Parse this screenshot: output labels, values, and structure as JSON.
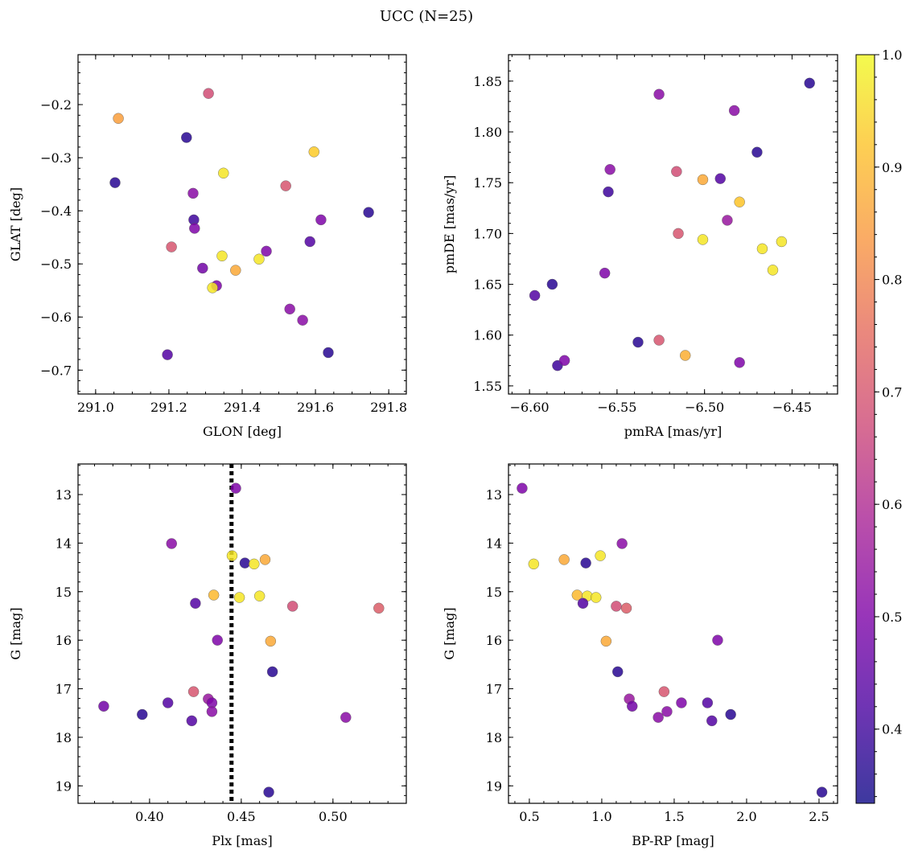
{
  "title": "UCC (N=25)",
  "colorbar": {
    "vmin": 0.334,
    "vmax": 1.0,
    "ticks": [
      0.4,
      0.5,
      0.6,
      0.7,
      0.8,
      0.9,
      1.0
    ],
    "tick_labels": [
      "0.4",
      "0.5",
      "0.6",
      "0.7",
      "0.8",
      "0.9",
      "1.0"
    ],
    "cmap": "plasma"
  },
  "chart_data": [
    {
      "type": "scatter",
      "xlabel": "GLON [deg]",
      "ylabel": "GLAT [deg]",
      "xlim": [
        290.952,
        291.848
      ],
      "ylim": [
        -0.745,
        -0.106
      ],
      "y_inverted": false,
      "xticks": [
        291.0,
        291.2,
        291.4,
        291.6,
        291.8
      ],
      "xtick_labels": [
        "291.0",
        "291.2",
        "291.4",
        "291.6",
        "291.8"
      ],
      "xminor": 0.05,
      "yticks": [
        -0.7,
        -0.6,
        -0.5,
        -0.4,
        -0.3,
        -0.2
      ],
      "ytick_labels": [
        "−0.7",
        "−0.6",
        "−0.5",
        "−0.4",
        "−0.3",
        "−0.2"
      ],
      "yminor": 0.02,
      "points": [
        [
          291.062,
          -0.226,
          0.85
        ],
        [
          291.308,
          -0.179,
          0.68
        ],
        [
          291.248,
          -0.262,
          0.37
        ],
        [
          291.053,
          -0.347,
          0.37
        ],
        [
          291.349,
          -0.329,
          0.97
        ],
        [
          291.596,
          -0.289,
          0.93
        ],
        [
          291.519,
          -0.353,
          0.7
        ],
        [
          291.266,
          -0.367,
          0.52
        ],
        [
          291.268,
          -0.417,
          0.4
        ],
        [
          291.27,
          -0.433,
          0.5
        ],
        [
          291.615,
          -0.417,
          0.5
        ],
        [
          291.745,
          -0.403,
          0.37
        ],
        [
          291.207,
          -0.468,
          0.7
        ],
        [
          291.585,
          -0.458,
          0.43
        ],
        [
          291.345,
          -0.485,
          0.97
        ],
        [
          291.466,
          -0.476,
          0.5
        ],
        [
          291.446,
          -0.491,
          0.97
        ],
        [
          291.382,
          -0.512,
          0.87
        ],
        [
          291.292,
          -0.508,
          0.48
        ],
        [
          291.33,
          -0.541,
          0.5
        ],
        [
          291.319,
          -0.545,
          0.97
        ],
        [
          291.53,
          -0.585,
          0.52
        ],
        [
          291.565,
          -0.606,
          0.52
        ],
        [
          291.196,
          -0.671,
          0.43
        ],
        [
          291.635,
          -0.667,
          0.37
        ]
      ]
    },
    {
      "type": "scatter",
      "xlabel": "pmRA [mas/yr]",
      "ylabel": "pmDE [mas/yr]",
      "xlim": [
        -6.612,
        -6.424
      ],
      "ylim": [
        1.542,
        1.876
      ],
      "y_inverted": false,
      "xticks": [
        -6.6,
        -6.55,
        -6.5,
        -6.45
      ],
      "xtick_labels": [
        "−6.60",
        "−6.55",
        "−6.50",
        "−6.45"
      ],
      "xminor": 0.01,
      "yticks": [
        1.55,
        1.6,
        1.65,
        1.7,
        1.75,
        1.8,
        1.85
      ],
      "ytick_labels": [
        "1.55",
        "1.60",
        "1.65",
        "1.70",
        "1.75",
        "1.80",
        "1.85"
      ],
      "yminor": 0.01,
      "points": [
        [
          -6.44,
          1.848,
          0.37
        ],
        [
          -6.526,
          1.837,
          0.52
        ],
        [
          -6.483,
          1.821,
          0.52
        ],
        [
          -6.47,
          1.78,
          0.37
        ],
        [
          -6.554,
          1.763,
          0.52
        ],
        [
          -6.516,
          1.761,
          0.68
        ],
        [
          -6.491,
          1.754,
          0.43
        ],
        [
          -6.501,
          1.753,
          0.87
        ],
        [
          -6.555,
          1.741,
          0.4
        ],
        [
          -6.48,
          1.731,
          0.92
        ],
        [
          -6.487,
          1.713,
          0.55
        ],
        [
          -6.515,
          1.7,
          0.7
        ],
        [
          -6.501,
          1.694,
          0.97
        ],
        [
          -6.456,
          1.692,
          0.97
        ],
        [
          -6.467,
          1.685,
          0.97
        ],
        [
          -6.461,
          1.664,
          0.97
        ],
        [
          -6.557,
          1.661,
          0.5
        ],
        [
          -6.587,
          1.65,
          0.37
        ],
        [
          -6.597,
          1.639,
          0.43
        ],
        [
          -6.538,
          1.593,
          0.37
        ],
        [
          -6.526,
          1.595,
          0.7
        ],
        [
          -6.511,
          1.58,
          0.88
        ],
        [
          -6.584,
          1.57,
          0.4
        ],
        [
          -6.58,
          1.575,
          0.5
        ],
        [
          -6.48,
          1.573,
          0.5
        ]
      ]
    },
    {
      "type": "scatter",
      "xlabel": "Plx [mas]",
      "ylabel": "G [mag]",
      "xlim": [
        0.361,
        0.54
      ],
      "ylim": [
        12.37,
        19.36
      ],
      "y_inverted": true,
      "xticks": [
        0.4,
        0.45,
        0.5
      ],
      "xtick_labels": [
        "0.40",
        "0.45",
        "0.50"
      ],
      "xminor": 0.01,
      "yticks": [
        13,
        14,
        15,
        16,
        17,
        18,
        19
      ],
      "ytick_labels": [
        "13",
        "14",
        "15",
        "16",
        "17",
        "18",
        "19"
      ],
      "yminor": 0.2,
      "vline": 0.4447,
      "points": [
        [
          0.447,
          12.87,
          0.5
        ],
        [
          0.412,
          14.01,
          0.52
        ],
        [
          0.445,
          14.26,
          0.97
        ],
        [
          0.452,
          14.41,
          0.37
        ],
        [
          0.463,
          14.34,
          0.87
        ],
        [
          0.457,
          14.43,
          0.97
        ],
        [
          0.435,
          15.07,
          0.9
        ],
        [
          0.449,
          15.12,
          0.97
        ],
        [
          0.46,
          15.09,
          0.97
        ],
        [
          0.425,
          15.24,
          0.43
        ],
        [
          0.478,
          15.3,
          0.68
        ],
        [
          0.525,
          15.34,
          0.72
        ],
        [
          0.437,
          16.0,
          0.5
        ],
        [
          0.466,
          16.02,
          0.87
        ],
        [
          0.467,
          16.65,
          0.37
        ],
        [
          0.424,
          17.06,
          0.7
        ],
        [
          0.432,
          17.21,
          0.55
        ],
        [
          0.434,
          17.29,
          0.5
        ],
        [
          0.434,
          17.47,
          0.52
        ],
        [
          0.375,
          17.36,
          0.48
        ],
        [
          0.41,
          17.29,
          0.43
        ],
        [
          0.396,
          17.53,
          0.37
        ],
        [
          0.423,
          17.66,
          0.43
        ],
        [
          0.507,
          17.59,
          0.52
        ],
        [
          0.465,
          19.13,
          0.37
        ]
      ]
    },
    {
      "type": "scatter",
      "xlabel": "BP-RP [mag]",
      "ylabel": "G [mag]",
      "xlim": [
        0.356,
        2.628
      ],
      "ylim": [
        12.37,
        19.36
      ],
      "y_inverted": true,
      "xticks": [
        0.5,
        1.0,
        1.5,
        2.0,
        2.5
      ],
      "xtick_labels": [
        "0.5",
        "1.0",
        "1.5",
        "2.0",
        "2.5"
      ],
      "xminor": 0.1,
      "yticks": [
        13,
        14,
        15,
        16,
        17,
        18,
        19
      ],
      "ytick_labels": [
        "13",
        "14",
        "15",
        "16",
        "17",
        "18",
        "19"
      ],
      "yminor": 0.2,
      "points": [
        [
          0.45,
          12.87,
          0.5
        ],
        [
          1.14,
          14.01,
          0.52
        ],
        [
          0.99,
          14.26,
          0.97
        ],
        [
          0.89,
          14.41,
          0.37
        ],
        [
          0.74,
          14.34,
          0.87
        ],
        [
          0.53,
          14.43,
          0.97
        ],
        [
          0.83,
          15.07,
          0.9
        ],
        [
          0.9,
          15.09,
          0.97
        ],
        [
          0.96,
          15.12,
          0.97
        ],
        [
          0.87,
          15.24,
          0.43
        ],
        [
          1.1,
          15.3,
          0.68
        ],
        [
          1.17,
          15.34,
          0.72
        ],
        [
          1.8,
          16.0,
          0.5
        ],
        [
          1.03,
          16.02,
          0.87
        ],
        [
          1.11,
          16.65,
          0.37
        ],
        [
          1.43,
          17.06,
          0.7
        ],
        [
          1.19,
          17.21,
          0.55
        ],
        [
          1.55,
          17.29,
          0.5
        ],
        [
          1.45,
          17.47,
          0.52
        ],
        [
          1.21,
          17.36,
          0.48
        ],
        [
          1.73,
          17.29,
          0.43
        ],
        [
          1.89,
          17.53,
          0.37
        ],
        [
          1.76,
          17.66,
          0.43
        ],
        [
          1.39,
          17.59,
          0.52
        ],
        [
          2.52,
          19.13,
          0.37
        ]
      ]
    }
  ]
}
